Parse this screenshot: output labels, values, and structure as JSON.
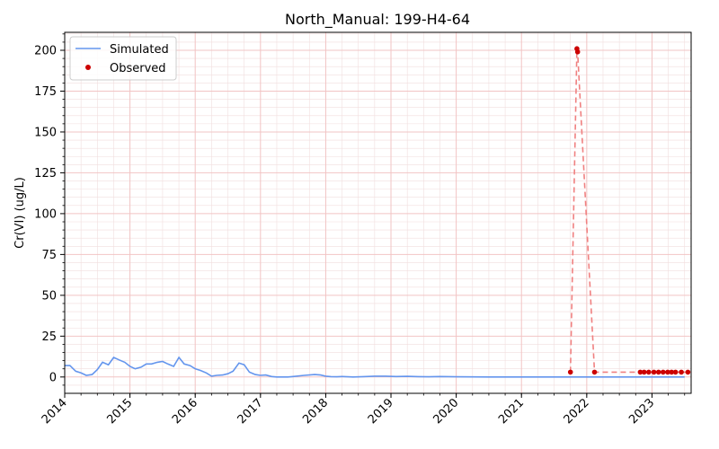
{
  "chart_data": {
    "type": "line",
    "title": "North_Manual: 199-H4-64",
    "xlabel": "",
    "ylabel": "Cr(VI) (ug/L)",
    "xlim": [
      2014.0,
      2023.6
    ],
    "ylim": [
      -10,
      211
    ],
    "x_ticks": [
      {
        "value": 2014,
        "label": "2014"
      },
      {
        "value": 2015,
        "label": "2015"
      },
      {
        "value": 2016,
        "label": "2016"
      },
      {
        "value": 2017,
        "label": "2017"
      },
      {
        "value": 2018,
        "label": "2018"
      },
      {
        "value": 2019,
        "label": "2019"
      },
      {
        "value": 2020,
        "label": "2020"
      },
      {
        "value": 2021,
        "label": "2021"
      },
      {
        "value": 2022,
        "label": "2022"
      },
      {
        "value": 2023,
        "label": "2023"
      }
    ],
    "y_ticks": [
      {
        "value": 0,
        "label": "0"
      },
      {
        "value": 25,
        "label": "25"
      },
      {
        "value": 50,
        "label": "50"
      },
      {
        "value": 75,
        "label": "75"
      },
      {
        "value": 100,
        "label": "100"
      },
      {
        "value": 125,
        "label": "125"
      },
      {
        "value": 150,
        "label": "150"
      },
      {
        "value": 175,
        "label": "175"
      },
      {
        "value": 200,
        "label": "200"
      }
    ],
    "grid": true,
    "legend_position": "top-left",
    "series": [
      {
        "name": "Simulated",
        "kind": "line",
        "color": "#6495ed",
        "x": [
          2014.0,
          2014.08,
          2014.17,
          2014.25,
          2014.33,
          2014.42,
          2014.5,
          2014.58,
          2014.67,
          2014.75,
          2014.83,
          2014.92,
          2015.0,
          2015.08,
          2015.17,
          2015.25,
          2015.33,
          2015.42,
          2015.5,
          2015.58,
          2015.67,
          2015.75,
          2015.83,
          2015.92,
          2016.0,
          2016.08,
          2016.17,
          2016.25,
          2016.33,
          2016.42,
          2016.5,
          2016.58,
          2016.67,
          2016.75,
          2016.83,
          2016.92,
          2017.0,
          2017.08,
          2017.17,
          2017.25,
          2017.33,
          2017.42,
          2017.5,
          2017.67,
          2017.83,
          2017.92,
          2018.0,
          2018.08,
          2018.17,
          2018.25,
          2018.42,
          2018.58,
          2018.75,
          2018.92,
          2019.08,
          2019.25,
          2019.42,
          2019.58,
          2019.75,
          2020.0,
          2020.5,
          2021.0,
          2021.5,
          2022.0,
          2022.5,
          2023.0,
          2023.5
        ],
        "y": [
          7,
          7,
          3.5,
          2.5,
          1,
          1.5,
          4.5,
          9,
          7.5,
          12,
          10.5,
          9,
          6.5,
          5,
          6,
          8,
          8,
          9,
          9.5,
          8,
          6.5,
          12,
          8,
          7,
          5,
          4,
          2.5,
          0.5,
          1,
          1.2,
          2,
          3.5,
          8.5,
          7.5,
          3,
          1.5,
          1,
          1.2,
          0.3,
          0,
          0,
          0,
          0.3,
          1,
          1.5,
          1.2,
          0.5,
          0.2,
          0.1,
          0.3,
          0,
          0.2,
          0.5,
          0.5,
          0.3,
          0.4,
          0.2,
          0.1,
          0.3,
          0.1,
          0,
          0,
          0,
          0,
          0,
          0,
          0
        ]
      },
      {
        "name": "Observed",
        "kind": "scatter",
        "color": "#cc0000",
        "line_color": "#f08080",
        "x": [
          2021.75,
          2021.85,
          2021.86,
          2022.12,
          2022.82,
          2022.88,
          2022.95,
          2023.03,
          2023.1,
          2023.17,
          2023.24,
          2023.3,
          2023.36,
          2023.45,
          2023.55
        ],
        "y": [
          3,
          201,
          199,
          3,
          3,
          3,
          3,
          3,
          3,
          3,
          3,
          3,
          3,
          3,
          3
        ]
      }
    ]
  }
}
